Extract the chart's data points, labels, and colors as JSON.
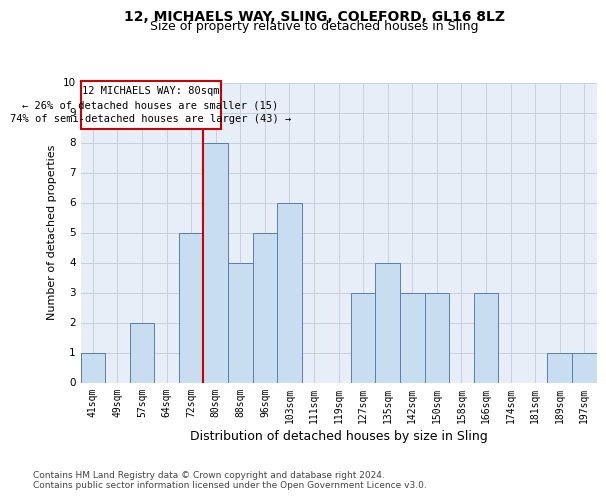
{
  "title": "12, MICHAELS WAY, SLING, COLEFORD, GL16 8LZ",
  "subtitle": "Size of property relative to detached houses in Sling",
  "xlabel": "Distribution of detached houses by size in Sling",
  "ylabel": "Number of detached properties",
  "categories": [
    "41sqm",
    "49sqm",
    "57sqm",
    "64sqm",
    "72sqm",
    "80sqm",
    "88sqm",
    "96sqm",
    "103sqm",
    "111sqm",
    "119sqm",
    "127sqm",
    "135sqm",
    "142sqm",
    "150sqm",
    "158sqm",
    "166sqm",
    "174sqm",
    "181sqm",
    "189sqm",
    "197sqm"
  ],
  "values": [
    1,
    0,
    2,
    0,
    5,
    8,
    4,
    5,
    6,
    0,
    0,
    3,
    4,
    3,
    3,
    0,
    3,
    0,
    0,
    1,
    1
  ],
  "bar_color": "#c9ddf0",
  "bar_edge_color": "#5580b0",
  "highlight_line_color": "#cc0000",
  "highlight_line_index": 5,
  "annotation_line1": "12 MICHAELS WAY: 80sqm",
  "annotation_line2": "← 26% of detached houses are smaller (15)",
  "annotation_line3": "74% of semi-detached houses are larger (43) →",
  "annotation_box_color": "#cc0000",
  "ylim": [
    0,
    10
  ],
  "yticks": [
    0,
    1,
    2,
    3,
    4,
    5,
    6,
    7,
    8,
    9,
    10
  ],
  "grid_color": "#c8d0de",
  "bg_color": "#e8eef8",
  "footer_text": "Contains HM Land Registry data © Crown copyright and database right 2024.\nContains public sector information licensed under the Open Government Licence v3.0.",
  "title_fontsize": 10,
  "subtitle_fontsize": 9,
  "xlabel_fontsize": 9,
  "ylabel_fontsize": 8,
  "annotation_fontsize": 7.5,
  "tick_fontsize": 7,
  "footer_fontsize": 6.5
}
